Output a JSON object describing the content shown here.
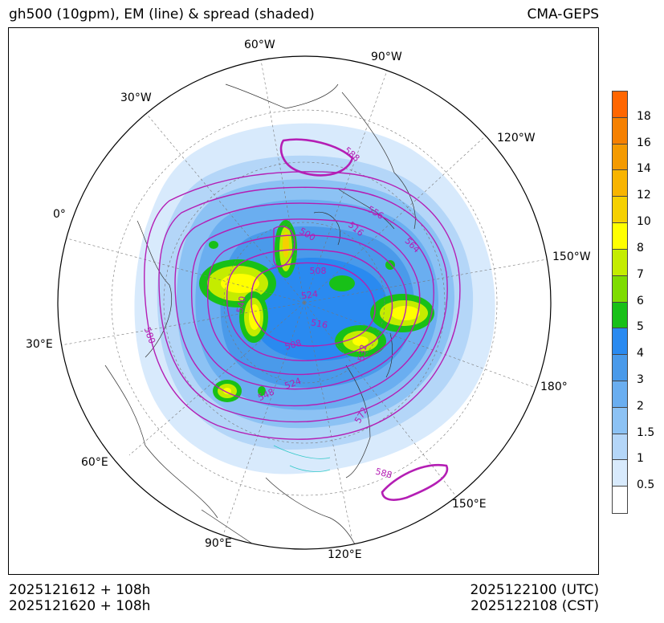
{
  "header": {
    "title": "gh500 (10gpm), EM (line) & spread (shaded)",
    "source": "CMA-GEPS"
  },
  "footer": {
    "init_utc": "2025121612 + 108h",
    "init_cst": "2025121620 + 108h",
    "valid_utc": "2025122100 (UTC)",
    "valid_cst": "2025122108 (CST)"
  },
  "map": {
    "projection": "north-polar-stereographic",
    "longitude_labels": [
      "60°W",
      "90°W",
      "30°W",
      "120°W",
      "0°",
      "150°W",
      "30°E",
      "180°",
      "60°E",
      "150°E",
      "90°E",
      "120°E"
    ],
    "contour_labels": [
      "588",
      "556",
      "516",
      "564",
      "500",
      "508",
      "524",
      "540",
      "516",
      "580",
      "508",
      "532",
      "524",
      "548",
      "572",
      "588"
    ],
    "colors": {
      "contour": "#b41eb4",
      "spread_0_5": "#d8eafc",
      "spread_1": "#b4d6f8",
      "spread_1_5": "#8cc2f4",
      "spread_2": "#6aaef0",
      "spread_3": "#4a9aea",
      "spread_4": "#2a8af0",
      "spread_5": "#18c018",
      "spread_6": "#7edc00",
      "spread_7": "#c4ec00",
      "spread_8": "#ffff00",
      "spread_10": "#f5d000",
      "spread_12": "#f8b400",
      "spread_14": "#f49a00",
      "spread_16": "#f58000",
      "spread_18": "#ff6600"
    }
  },
  "colorbar": {
    "labels": [
      "0.5",
      "1",
      "1.5",
      "2",
      "3",
      "4",
      "5",
      "6",
      "7",
      "8",
      "10",
      "12",
      "14",
      "16",
      "18"
    ],
    "colors": [
      "#ffffff",
      "#d8eafc",
      "#b4d6f8",
      "#8cc2f4",
      "#6aaef0",
      "#4a9aea",
      "#2a8af0",
      "#18c018",
      "#7edc00",
      "#c4ec00",
      "#ffff00",
      "#f5d000",
      "#f8b400",
      "#f49a00",
      "#f58000",
      "#ff6600"
    ]
  }
}
